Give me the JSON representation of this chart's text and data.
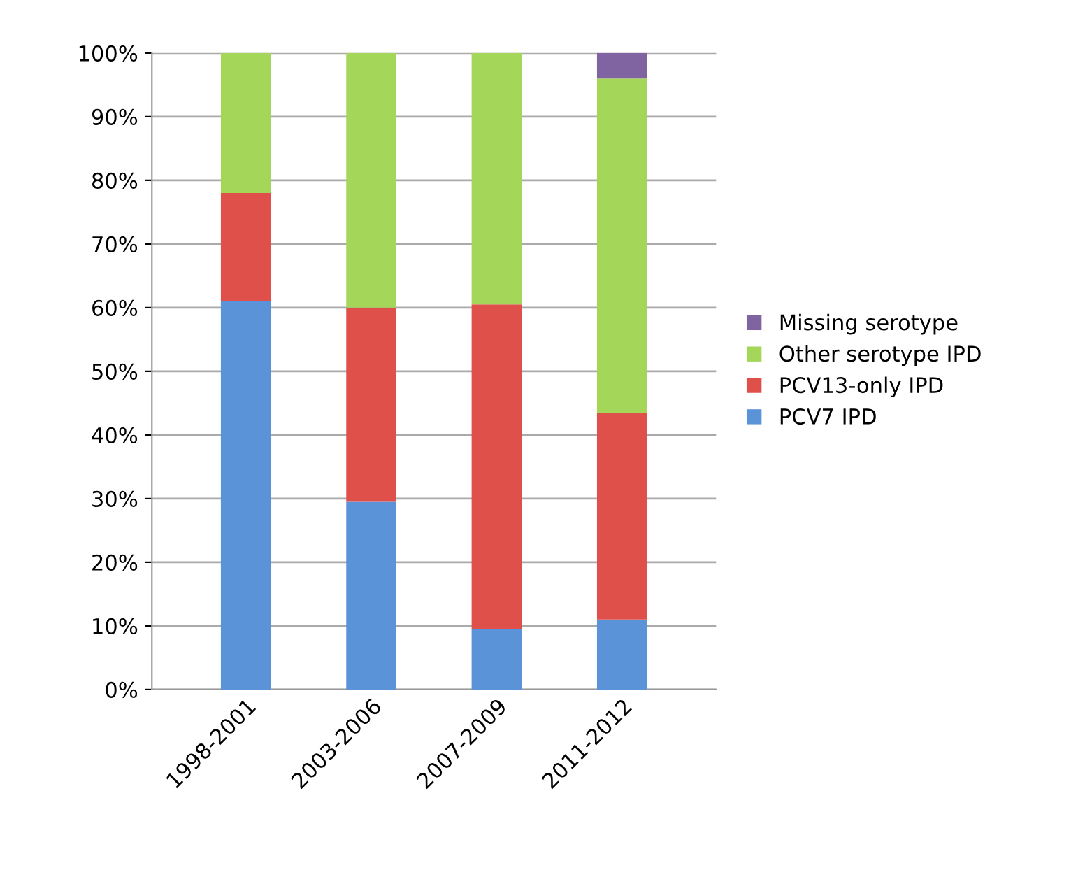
{
  "chart_data": {
    "type": "bar",
    "stacked": true,
    "categories": [
      "1998-2001",
      "2003-2006",
      "2007-2009",
      "2011-2012"
    ],
    "series": [
      {
        "name": "PCV7 IPD",
        "color": "#5b93d9",
        "values": [
          61,
          29.5,
          9.5,
          11
        ]
      },
      {
        "name": "PCV13-only IPD",
        "color": "#e0504a",
        "values": [
          17,
          30.5,
          51,
          32.5
        ]
      },
      {
        "name": "Other serotype IPD",
        "color": "#a4d65a",
        "values": [
          22,
          40,
          39.5,
          52.5
        ]
      },
      {
        "name": "Missing serotype",
        "color": "#8064a2",
        "values": [
          0,
          0,
          0,
          4
        ]
      }
    ],
    "ylim": [
      0,
      100
    ],
    "yticks": [
      {
        "value": 0,
        "label": "0%"
      },
      {
        "value": 10,
        "label": "10%"
      },
      {
        "value": 20,
        "label": "20%"
      },
      {
        "value": 30,
        "label": "30%"
      },
      {
        "value": 40,
        "label": "40%"
      },
      {
        "value": 50,
        "label": "50%"
      },
      {
        "value": 60,
        "label": "60%"
      },
      {
        "value": 70,
        "label": "70%"
      },
      {
        "value": 80,
        "label": "80%"
      },
      {
        "value": 90,
        "label": "90%"
      },
      {
        "value": 100,
        "label": "100%"
      }
    ],
    "grid": "y",
    "legend": "right"
  }
}
